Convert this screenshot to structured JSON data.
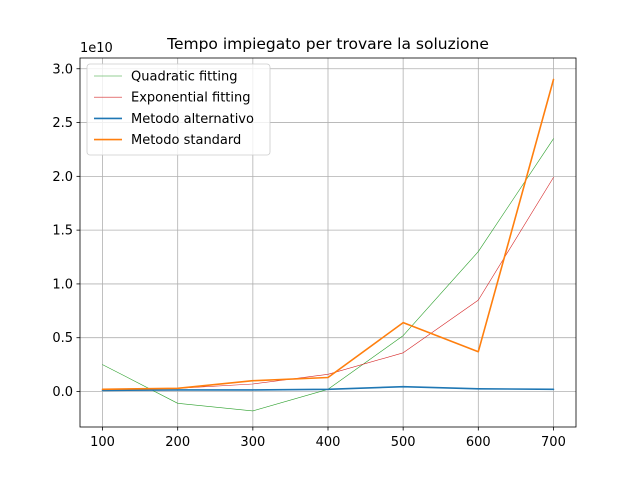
{
  "chart_data": {
    "type": "line",
    "title": "Tempo impiegato per trovare la soluzione",
    "xlabel": "",
    "ylabel": "",
    "y_multiplier_label": "1e10",
    "y_scale": 10000000000,
    "x": [
      100,
      200,
      300,
      400,
      500,
      600,
      700
    ],
    "xlim": [
      70,
      730
    ],
    "ylim": [
      -0.33,
      3.1
    ],
    "x_ticks": [
      100,
      200,
      300,
      400,
      500,
      600,
      700
    ],
    "x_tick_labels": [
      "100",
      "200",
      "300",
      "400",
      "500",
      "600",
      "700"
    ],
    "y_ticks": [
      0.0,
      0.5,
      1.0,
      1.5,
      2.0,
      2.5,
      3.0
    ],
    "y_tick_labels": [
      "0.0",
      "0.5",
      "1.0",
      "1.5",
      "2.0",
      "2.5",
      "3.0"
    ],
    "grid": true,
    "legend_position": "top-left",
    "series": [
      {
        "name": "Quadratic fitting",
        "color": "#2ca02c",
        "width": 0.6,
        "values": [
          0.25,
          -0.11,
          -0.18,
          0.02,
          0.52,
          1.3,
          2.35
        ]
      },
      {
        "name": "Exponential fitting",
        "color": "#d62728",
        "width": 0.6,
        "values": [
          0.01,
          0.03,
          0.07,
          0.16,
          0.36,
          0.85,
          1.99
        ]
      },
      {
        "name": "Metodo alternativo",
        "color": "#1f77b4",
        "width": 1.6,
        "values": [
          0.01,
          0.015,
          0.015,
          0.02,
          0.045,
          0.025,
          0.02
        ]
      },
      {
        "name": "Metodo standard",
        "color": "#ff7f0e",
        "width": 1.6,
        "values": [
          0.02,
          0.03,
          0.1,
          0.13,
          0.64,
          0.37,
          2.9
        ]
      }
    ]
  }
}
